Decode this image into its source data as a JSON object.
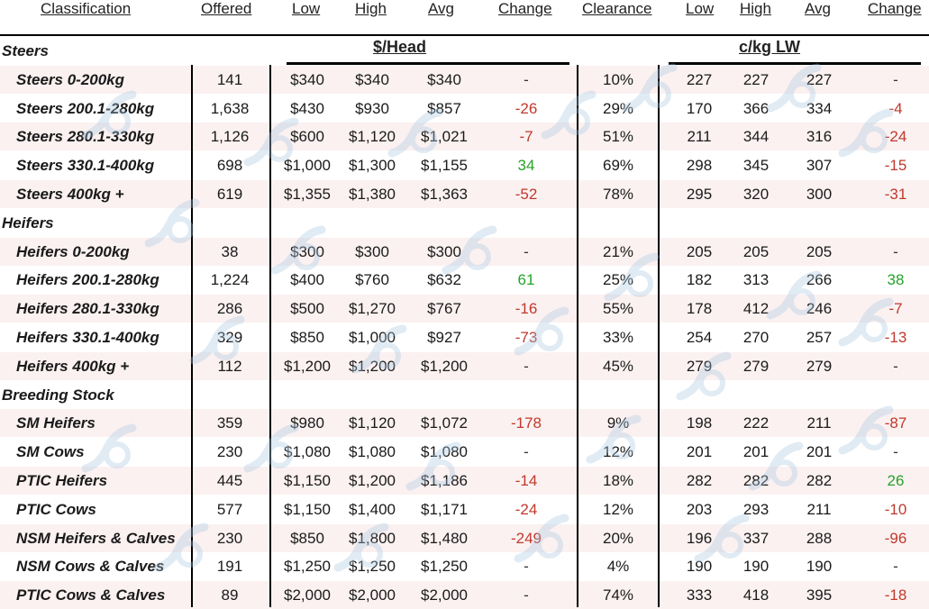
{
  "headers": {
    "classification": "Classification",
    "offered": "Offered",
    "low": "Low",
    "high": "High",
    "avg": "Avg",
    "change": "Change",
    "clearance": "Clearance",
    "low2": "Low",
    "high2": "High",
    "avg2": "Avg",
    "change2": "Change"
  },
  "units": {
    "head": "$/Head",
    "cents": "c/kg LW"
  },
  "rows": [
    {
      "type": "category",
      "label": "Steers"
    },
    {
      "type": "item",
      "label": "Steers 0-200kg",
      "offered": "141",
      "low": "$340",
      "high": "$340",
      "avg": "$340",
      "change": "-",
      "clearance": "10%",
      "low2": "227",
      "high2": "227",
      "avg2": "227",
      "change2": "-"
    },
    {
      "type": "item",
      "label": "Steers 200.1-280kg",
      "offered": "1,638",
      "low": "$430",
      "high": "$930",
      "avg": "$857",
      "change": "-26",
      "clearance": "29%",
      "low2": "170",
      "high2": "366",
      "avg2": "334",
      "change2": "-4"
    },
    {
      "type": "item",
      "label": "Steers 280.1-330kg",
      "offered": "1,126",
      "low": "$600",
      "high": "$1,120",
      "avg": "$1,021",
      "change": "-7",
      "clearance": "51%",
      "low2": "211",
      "high2": "344",
      "avg2": "316",
      "change2": "-24"
    },
    {
      "type": "item",
      "label": "Steers 330.1-400kg",
      "offered": "698",
      "low": "$1,000",
      "high": "$1,300",
      "avg": "$1,155",
      "change": "34",
      "clearance": "69%",
      "low2": "298",
      "high2": "345",
      "avg2": "307",
      "change2": "-15"
    },
    {
      "type": "item",
      "label": "Steers 400kg +",
      "offered": "619",
      "low": "$1,355",
      "high": "$1,380",
      "avg": "$1,363",
      "change": "-52",
      "clearance": "78%",
      "low2": "295",
      "high2": "320",
      "avg2": "300",
      "change2": "-31"
    },
    {
      "type": "category",
      "label": "Heifers"
    },
    {
      "type": "item",
      "label": "Heifers 0-200kg",
      "offered": "38",
      "low": "$300",
      "high": "$300",
      "avg": "$300",
      "change": "-",
      "clearance": "21%",
      "low2": "205",
      "high2": "205",
      "avg2": "205",
      "change2": "-"
    },
    {
      "type": "item",
      "label": "Heifers 200.1-280kg",
      "offered": "1,224",
      "low": "$400",
      "high": "$760",
      "avg": "$632",
      "change": "61",
      "clearance": "25%",
      "low2": "182",
      "high2": "313",
      "avg2": "266",
      "change2": "38"
    },
    {
      "type": "item",
      "label": "Heifers 280.1-330kg",
      "offered": "286",
      "low": "$500",
      "high": "$1,270",
      "avg": "$767",
      "change": "-16",
      "clearance": "55%",
      "low2": "178",
      "high2": "412",
      "avg2": "246",
      "change2": "-7"
    },
    {
      "type": "item",
      "label": "Heifers 330.1-400kg",
      "offered": "329",
      "low": "$850",
      "high": "$1,000",
      "avg": "$927",
      "change": "-73",
      "clearance": "33%",
      "low2": "254",
      "high2": "270",
      "avg2": "257",
      "change2": "-13"
    },
    {
      "type": "item",
      "label": "Heifers 400kg +",
      "offered": "112",
      "low": "$1,200",
      "high": "$1,200",
      "avg": "$1,200",
      "change": "-",
      "clearance": "45%",
      "low2": "279",
      "high2": "279",
      "avg2": "279",
      "change2": "-"
    },
    {
      "type": "category",
      "label": "Breeding Stock"
    },
    {
      "type": "item",
      "label": "SM Heifers",
      "offered": "359",
      "low": "$980",
      "high": "$1,120",
      "avg": "$1,072",
      "change": "-178",
      "clearance": "9%",
      "low2": "198",
      "high2": "222",
      "avg2": "211",
      "change2": "-87"
    },
    {
      "type": "item",
      "label": "SM Cows",
      "offered": "230",
      "low": "$1,080",
      "high": "$1,080",
      "avg": "$1,080",
      "change": "-",
      "clearance": "12%",
      "low2": "201",
      "high2": "201",
      "avg2": "201",
      "change2": "-"
    },
    {
      "type": "item",
      "label": "PTIC Heifers",
      "offered": "445",
      "low": "$1,150",
      "high": "$1,200",
      "avg": "$1,186",
      "change": "-14",
      "clearance": "18%",
      "low2": "282",
      "high2": "282",
      "avg2": "282",
      "change2": "26"
    },
    {
      "type": "item",
      "label": "PTIC Cows",
      "offered": "577",
      "low": "$1,150",
      "high": "$1,400",
      "avg": "$1,171",
      "change": "-24",
      "clearance": "12%",
      "low2": "203",
      "high2": "293",
      "avg2": "211",
      "change2": "-10"
    },
    {
      "type": "item",
      "label": "NSM Heifers & Calves",
      "offered": "230",
      "low": "$850",
      "high": "$1,800",
      "avg": "$1,480",
      "change": "-249",
      "clearance": "20%",
      "low2": "196",
      "high2": "337",
      "avg2": "288",
      "change2": "-96"
    },
    {
      "type": "item",
      "label": "NSM Cows & Calves",
      "offered": "191",
      "low": "$1,250",
      "high": "$1,250",
      "avg": "$1,250",
      "change": "-",
      "clearance": "4%",
      "low2": "190",
      "high2": "190",
      "avg2": "190",
      "change2": "-"
    },
    {
      "type": "item",
      "label": "PTIC Cows & Calves",
      "offered": "89",
      "low": "$2,000",
      "high": "$2,000",
      "avg": "$2,000",
      "change": "-",
      "clearance": "74%",
      "low2": "333",
      "high2": "418",
      "avg2": "395",
      "change2": "-18"
    }
  ],
  "colors": {
    "negative": "#c0392b",
    "positive": "#27a22a",
    "shade": "#fbf1f1",
    "watermark": "#a9c8e0"
  }
}
